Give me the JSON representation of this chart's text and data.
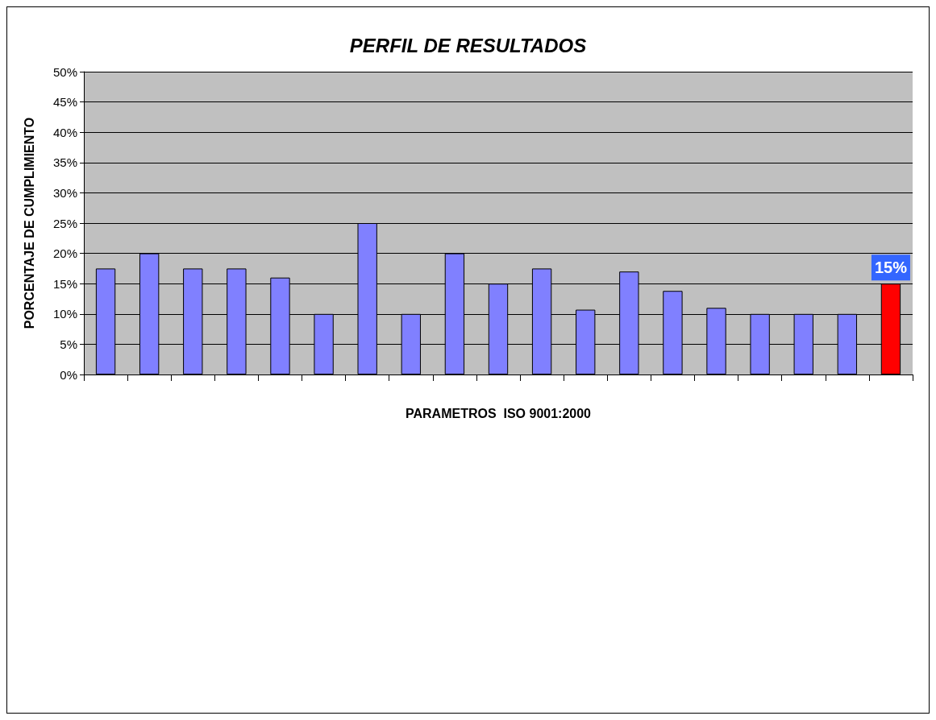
{
  "chart_data": {
    "type": "bar",
    "title": "PERFIL DE RESULTADOS",
    "xlabel": "PARAMETROS  ISO 9001:2000",
    "ylabel": "PORCENTAJE DE CUMPLIMIENTO",
    "categories": [
      null,
      null,
      null,
      null,
      null,
      null,
      null,
      null,
      null,
      null,
      null,
      null,
      null,
      null,
      null,
      null,
      null,
      null,
      null
    ],
    "values": [
      17.5,
      20,
      17.5,
      17.5,
      16,
      10,
      25,
      10,
      20,
      15,
      17.5,
      10.7,
      17,
      13.8,
      11,
      10,
      10,
      10,
      15
    ],
    "colors": [
      "#8080ff",
      "#8080ff",
      "#8080ff",
      "#8080ff",
      "#8080ff",
      "#8080ff",
      "#8080ff",
      "#8080ff",
      "#8080ff",
      "#8080ff",
      "#8080ff",
      "#8080ff",
      "#8080ff",
      "#8080ff",
      "#8080ff",
      "#8080ff",
      "#8080ff",
      "#8080ff",
      "#ff0000"
    ],
    "value_labels": [
      null,
      null,
      null,
      null,
      null,
      null,
      null,
      null,
      null,
      null,
      null,
      null,
      null,
      null,
      null,
      null,
      null,
      null,
      "15%"
    ],
    "ylim": [
      0,
      50
    ],
    "yticks": [
      {
        "value": 0,
        "label": "0%"
      },
      {
        "value": 5,
        "label": "5%"
      },
      {
        "value": 10,
        "label": "10%"
      },
      {
        "value": 15,
        "label": "15%"
      },
      {
        "value": 20,
        "label": "20%"
      },
      {
        "value": 25,
        "label": "25%"
      },
      {
        "value": 30,
        "label": "30%"
      },
      {
        "value": 35,
        "label": "35%"
      },
      {
        "value": 40,
        "label": "40%"
      },
      {
        "value": 45,
        "label": "45%"
      },
      {
        "value": 50,
        "label": "50%"
      }
    ],
    "grid": "y"
  }
}
